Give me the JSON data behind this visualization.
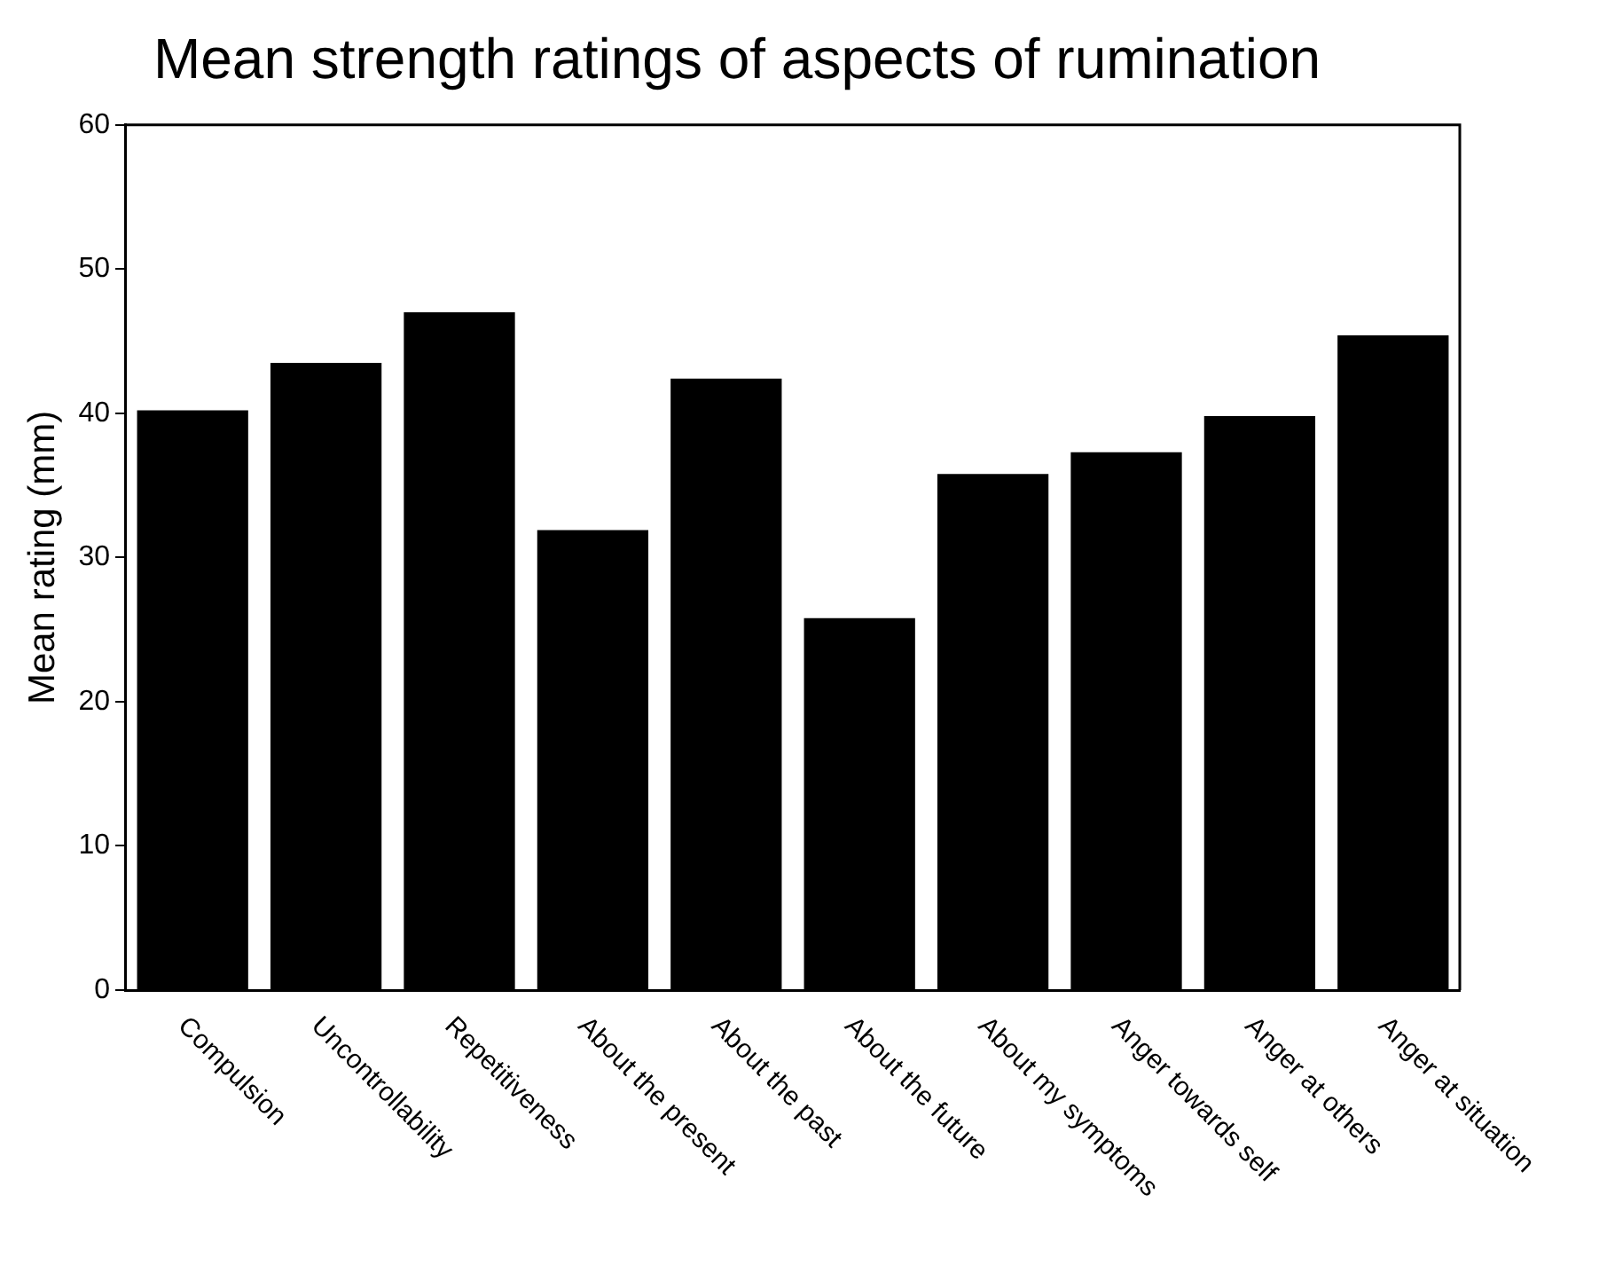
{
  "chart_data": {
    "type": "bar",
    "title": "Mean strength ratings of aspects of rumination",
    "ylabel": "Mean rating (mm)",
    "categories": [
      "Compulsion",
      "Uncontrollability",
      "Repetitiveness",
      "About the present",
      "About the past",
      "About the future",
      "About my symptoms",
      "Anger towards self",
      "Anger at others",
      "Anger at situation"
    ],
    "values": [
      40.2,
      43.5,
      47.0,
      31.9,
      42.4,
      25.8,
      35.8,
      37.3,
      39.8,
      45.4
    ],
    "color": "#000000",
    "ylim": [
      0,
      60
    ],
    "yticks": [
      0,
      10,
      20,
      30,
      40,
      50,
      60
    ],
    "grid": false,
    "legend": false
  }
}
